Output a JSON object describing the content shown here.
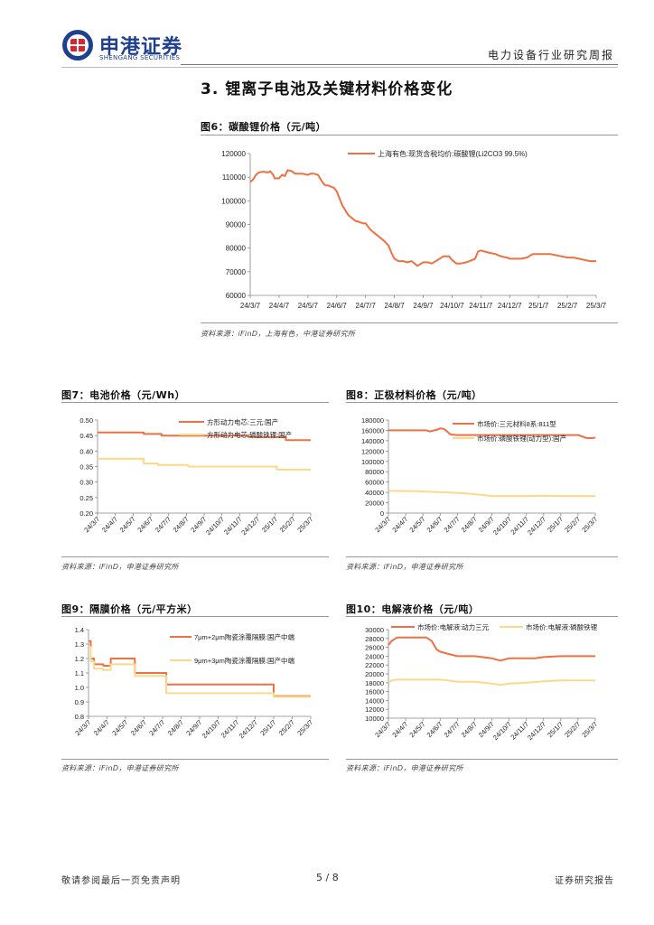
{
  "header": {
    "company_cn": "申港证券",
    "company_en": "SHENGANG SECURITIES",
    "report_type": "电力设备行业研究周报"
  },
  "section_title": "3. 锂离子电池及关键材料价格变化",
  "colors": {
    "orange": "#ee7045",
    "yellow": "#fbd98a",
    "logo_blue": "#1f3f8f",
    "logo_red": "#d9262c"
  },
  "figures": {
    "fig6": {
      "title": "图6：碳酸锂价格（元/吨）",
      "source": "资料来源：iFinD，上海有色，中港证券研究所"
    },
    "fig7": {
      "title": "图7：电池价格（元/Wh）",
      "source": "资料来源：iFinD，申港证券研究所"
    },
    "fig8": {
      "title": "图8：正极材料价格（元/吨）",
      "source": "资料来源：iFinD，申港证券研究所"
    },
    "fig9": {
      "title": "图9：隔膜价格（元/平方米）",
      "source": "资料来源：iFinD，申港证券研究所"
    },
    "fig10": {
      "title": "图10：电解液价格（元/吨）",
      "source": "资料来源：iFinD，申港证券研究所"
    }
  },
  "chart_data": [
    {
      "id": "fig6",
      "type": "line",
      "title": "图6：碳酸锂价格（元/吨）",
      "xticks": [
        "24/3/7",
        "24/4/7",
        "24/5/7",
        "24/6/7",
        "24/7/7",
        "24/8/7",
        "24/9/7",
        "24/10/7",
        "24/11/7",
        "24/12/7",
        "25/1/7",
        "25/2/7",
        "25/3/7"
      ],
      "ylim": [
        60000,
        120000
      ],
      "yticks": [
        60000,
        70000,
        80000,
        90000,
        100000,
        110000,
        120000
      ],
      "series": [
        {
          "name": "上海有色:现货含税均价:碳酸锂(Li2CO3 99.5%)",
          "color": "#ee7045",
          "x": [
            0,
            0.1,
            0.2,
            0.3,
            0.45,
            0.6,
            0.7,
            0.8,
            0.85,
            1.0,
            1.1,
            1.2,
            1.3,
            1.45,
            1.55,
            1.7,
            1.8,
            2.0,
            2.1,
            2.2,
            2.35,
            2.5,
            2.6,
            2.7,
            2.8,
            2.9,
            3.0,
            3.1,
            3.2,
            3.3,
            3.4,
            3.5,
            3.65,
            3.8,
            3.9,
            4.0,
            4.15,
            4.3,
            4.45,
            4.55,
            4.65,
            4.8,
            4.9,
            5.0,
            5.15,
            5.3,
            5.45,
            5.6,
            5.8,
            6.0,
            6.15,
            6.3,
            6.5,
            6.7,
            6.9,
            7.0,
            7.15,
            7.3,
            7.5,
            7.7,
            7.8,
            7.9,
            8.0,
            8.15,
            8.3,
            8.5,
            8.7,
            8.9,
            9.0,
            9.2,
            9.4,
            9.6,
            9.8,
            10.0,
            10.2,
            10.4,
            10.6,
            10.8,
            11.0,
            11.2,
            11.4,
            11.6,
            11.8,
            12.0
          ],
          "y": [
            108000,
            109000,
            111000,
            112000,
            112300,
            112000,
            112500,
            111000,
            109500,
            109500,
            111000,
            110500,
            113000,
            112500,
            111500,
            111500,
            111500,
            111000,
            111500,
            111500,
            111000,
            108000,
            106500,
            106500,
            106000,
            105500,
            104000,
            101000,
            98000,
            96000,
            94000,
            93000,
            91500,
            91000,
            90500,
            90500,
            88000,
            86500,
            85000,
            84000,
            83000,
            81000,
            78000,
            75500,
            74500,
            74500,
            74000,
            74500,
            72500,
            74000,
            74000,
            73500,
            75000,
            76500,
            76500,
            75000,
            73500,
            73500,
            74000,
            75000,
            75500,
            78500,
            79000,
            78500,
            78000,
            77500,
            76500,
            76000,
            75500,
            75500,
            75500,
            76000,
            77500,
            77500,
            77500,
            77500,
            77000,
            76500,
            76000,
            76000,
            75500,
            75000,
            74500,
            74500
          ]
        }
      ]
    },
    {
      "id": "fig7",
      "type": "line",
      "title": "图7：电池价格（元/Wh）",
      "xticks": [
        "24/3/7",
        "24/4/7",
        "24/5/7",
        "24/6/7",
        "24/7/7",
        "24/8/7",
        "24/9/7",
        "24/10/7",
        "24/11/7",
        "24/12/7",
        "25/1/7",
        "25/2/7",
        "25/3/7"
      ],
      "ylim": [
        0.2,
        0.5
      ],
      "yticks": [
        "0.20",
        "0.25",
        "0.30",
        "0.35",
        "0.40",
        "0.45",
        "0.50"
      ],
      "series": [
        {
          "name": "方形动力电芯:三元:国产",
          "color": "#ee7045",
          "x": [
            0,
            2.6,
            2.6,
            3.6,
            3.6,
            8.5,
            8.5,
            10.6,
            10.6,
            12
          ],
          "y": [
            0.46,
            0.46,
            0.455,
            0.455,
            0.45,
            0.45,
            0.445,
            0.445,
            0.435,
            0.435
          ]
        },
        {
          "name": "方形动力电芯:磷酸铁锂:国产",
          "color": "#fbd98a",
          "x": [
            0,
            2.6,
            2.6,
            3.4,
            3.4,
            5.1,
            5.1,
            10.1,
            10.1,
            12
          ],
          "y": [
            0.375,
            0.375,
            0.36,
            0.36,
            0.355,
            0.355,
            0.35,
            0.35,
            0.34,
            0.34
          ]
        }
      ]
    },
    {
      "id": "fig8",
      "type": "line",
      "title": "图8：正极材料价格（元/吨）",
      "xticks": [
        "24/3/7",
        "24/4/7",
        "24/5/7",
        "24/6/7",
        "24/7/7",
        "24/8/7",
        "24/9/7",
        "24/10/7",
        "24/11/7",
        "24/12/7",
        "25/1/7",
        "25/2/7",
        "25/3/7"
      ],
      "ylim": [
        0,
        180000
      ],
      "yticks": [
        0,
        20000,
        40000,
        60000,
        80000,
        100000,
        120000,
        140000,
        160000,
        180000
      ],
      "series": [
        {
          "name": "市场价:三元材料8系:811型",
          "color": "#ee7045",
          "x": [
            0,
            2.2,
            2.4,
            2.8,
            3.0,
            3.2,
            3.4,
            3.6,
            4.0,
            5.0,
            6.0,
            7.0,
            8.0,
            9.0,
            10.0,
            11.0,
            11.5,
            11.8,
            12
          ],
          "y": [
            160000,
            160000,
            158000,
            161000,
            164000,
            163000,
            158000,
            152000,
            151000,
            151000,
            151000,
            151000,
            151000,
            151000,
            151000,
            151000,
            145000,
            145000,
            146000
          ]
        },
        {
          "name": "市场价:磷酸铁锂(动力型):国产",
          "color": "#fbd98a",
          "x": [
            0,
            1.5,
            2.5,
            3.5,
            4.5,
            5.5,
            6.0,
            7.0,
            8.0,
            9.0,
            10.0,
            11.0,
            12
          ],
          "y": [
            43000,
            42500,
            41000,
            40000,
            38000,
            35000,
            33000,
            33000,
            33000,
            33500,
            33000,
            33000,
            33000
          ]
        }
      ]
    },
    {
      "id": "fig9",
      "type": "line",
      "title": "图9：隔膜价格（元/平方米）",
      "xticks": [
        "24/3/7",
        "24/4/7",
        "24/5/7",
        "24/6/7",
        "24/7/7",
        "24/8/7",
        "24/9/7",
        "24/10/7",
        "24/11/7",
        "24/12/7",
        "25/1/7",
        "25/2/7",
        "25/3/7"
      ],
      "ylim": [
        0.8,
        1.4
      ],
      "yticks": [
        "0.8",
        "0.9",
        "1.0",
        "1.1",
        "1.2",
        "1.3",
        "1.4"
      ],
      "series": [
        {
          "name": "7μm+2μm陶瓷涂覆隔膜:国产中端",
          "color": "#ee7045",
          "x": [
            0,
            0.12,
            0.12,
            0.3,
            0.3,
            0.8,
            0.8,
            1.2,
            1.2,
            2.5,
            2.5,
            3.5,
            3.5,
            4.2,
            4.2,
            10.0,
            10.0,
            12
          ],
          "y": [
            1.32,
            1.32,
            1.2,
            1.2,
            1.16,
            1.16,
            1.15,
            1.15,
            1.2,
            1.2,
            1.1,
            1.1,
            1.1,
            1.1,
            1.02,
            1.02,
            0.94,
            0.94
          ]
        },
        {
          "name": "9μm+3μm陶瓷涂覆隔膜:国产中端",
          "color": "#fbd98a",
          "x": [
            0,
            0.12,
            0.12,
            0.3,
            0.3,
            0.8,
            0.8,
            1.2,
            1.2,
            2.5,
            2.5,
            3.5,
            3.5,
            4.2,
            4.2,
            10.0,
            10.0,
            12
          ],
          "y": [
            1.28,
            1.28,
            1.18,
            1.18,
            1.13,
            1.13,
            1.12,
            1.12,
            1.16,
            1.16,
            1.08,
            1.08,
            1.08,
            1.08,
            0.96,
            0.96,
            0.935,
            0.935
          ]
        }
      ]
    },
    {
      "id": "fig10",
      "type": "line",
      "title": "图10：电解液价格（元/吨）",
      "xticks": [
        "24/3/7",
        "24/4/7",
        "24/5/7",
        "24/6/7",
        "24/7/7",
        "24/8/7",
        "24/9/7",
        "24/10/7",
        "24/11/7",
        "24/12/7",
        "25/1/7",
        "25/2/7",
        "25/3/7"
      ],
      "ylim": [
        10000,
        30000
      ],
      "yticks": [
        10000,
        12000,
        14000,
        16000,
        18000,
        20000,
        22000,
        24000,
        26000,
        28000,
        30000
      ],
      "series": [
        {
          "name": "市场价:电解液:动力三元",
          "color": "#ee7045",
          "x": [
            0,
            0.2,
            0.5,
            2.2,
            2.5,
            2.8,
            3.0,
            3.5,
            4.0,
            5.0,
            6.0,
            6.5,
            7.0,
            8.0,
            8.5,
            9.0,
            10.0,
            11.0,
            12
          ],
          "y": [
            26500,
            27500,
            28200,
            28200,
            27500,
            25500,
            25000,
            24500,
            24000,
            24000,
            23500,
            23000,
            23500,
            23500,
            23500,
            23800,
            24000,
            24000,
            24000
          ]
        },
        {
          "name": "市场价:电解液:磷酸铁锂",
          "color": "#fbd98a",
          "x": [
            0,
            0.2,
            0.5,
            3.0,
            3.5,
            4.0,
            5.0,
            6.0,
            6.5,
            7.0,
            8.0,
            9.0,
            10.0,
            11.0,
            12
          ],
          "y": [
            18000,
            18500,
            18700,
            18700,
            18500,
            18200,
            18200,
            17800,
            17500,
            17800,
            18000,
            18300,
            18500,
            18500,
            18500
          ]
        }
      ]
    }
  ],
  "footer": {
    "left": "敬请参阅最后一页免责声明",
    "page": "5 / 8",
    "right": "证券研究报告"
  }
}
